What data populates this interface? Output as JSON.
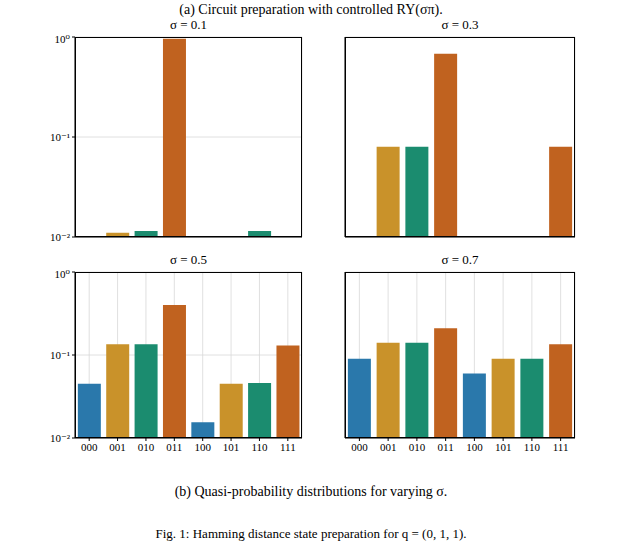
{
  "caption_a": "(a) Circuit preparation with controlled RY(σπ).",
  "caption_b": "(b) Quasi-probability distributions for varying σ.",
  "figure_caption": "Fig. 1: Hamming distance state preparation for q = (0, 1, 1).",
  "chart_data": [
    {
      "type": "bar",
      "title": "σ = 0.1",
      "categories": [
        "000",
        "001",
        "010",
        "011",
        "100",
        "101",
        "110",
        "111"
      ],
      "values": [
        null,
        0.011,
        0.0115,
        0.96,
        null,
        null,
        0.0115,
        null
      ],
      "colors": [
        "#2a78ab",
        "#c9922a",
        "#1b8c6f",
        "#c0621f",
        "#2a78ab",
        "#c9922a",
        "#1b8c6f",
        "#c0621f"
      ],
      "log": "y",
      "ylim": [
        0.01,
        1
      ],
      "yticks": [
        {
          "value": 0.01,
          "label": "10⁻²"
        },
        {
          "value": 0.1,
          "label": "10⁻¹"
        },
        {
          "value": 1,
          "label": "10⁰"
        }
      ],
      "grid": true,
      "tick_labels": "y"
    },
    {
      "type": "bar",
      "title": "σ = 0.3",
      "categories": [
        "000",
        "001",
        "010",
        "011",
        "100",
        "101",
        "110",
        "111"
      ],
      "values": [
        null,
        0.08,
        0.08,
        0.68,
        null,
        null,
        null,
        0.08
      ],
      "colors": [
        "#2a78ab",
        "#c9922a",
        "#1b8c6f",
        "#c0621f",
        "#2a78ab",
        "#c9922a",
        "#1b8c6f",
        "#c0621f"
      ],
      "log": "y",
      "ylim": [
        0.01,
        1
      ],
      "yticks": [
        {
          "value": 0.01,
          "label": "10⁻²"
        },
        {
          "value": 0.1,
          "label": "10⁻¹"
        },
        {
          "value": 1,
          "label": "10⁰"
        }
      ],
      "grid": true,
      "tick_labels": false
    },
    {
      "type": "bar",
      "title": "σ = 0.5",
      "categories": [
        "000",
        "001",
        "010",
        "011",
        "100",
        "101",
        "110",
        "111"
      ],
      "values": [
        0.045,
        0.135,
        0.135,
        0.4,
        0.0155,
        0.045,
        0.046,
        0.13
      ],
      "colors": [
        "#2a78ab",
        "#c9922a",
        "#1b8c6f",
        "#c0621f",
        "#2a78ab",
        "#c9922a",
        "#1b8c6f",
        "#c0621f"
      ],
      "log": "y",
      "ylim": [
        0.01,
        1
      ],
      "yticks": [
        {
          "value": 0.01,
          "label": "10⁻²"
        },
        {
          "value": 0.1,
          "label": "10⁻¹"
        },
        {
          "value": 1,
          "label": "10⁰"
        }
      ],
      "grid": true,
      "tick_labels": true
    },
    {
      "type": "bar",
      "title": "σ = 0.7",
      "categories": [
        "000",
        "001",
        "010",
        "011",
        "100",
        "101",
        "110",
        "111"
      ],
      "values": [
        0.09,
        0.14,
        0.14,
        0.21,
        0.06,
        0.09,
        0.09,
        0.135
      ],
      "colors": [
        "#2a78ab",
        "#c9922a",
        "#1b8c6f",
        "#c0621f",
        "#2a78ab",
        "#c9922a",
        "#1b8c6f",
        "#c0621f"
      ],
      "log": "y",
      "ylim": [
        0.01,
        1
      ],
      "yticks": [
        {
          "value": 0.01,
          "label": "10⁻²"
        },
        {
          "value": 0.1,
          "label": "10⁻¹"
        },
        {
          "value": 1,
          "label": "10⁰"
        }
      ],
      "grid": true,
      "tick_labels": "x"
    }
  ]
}
